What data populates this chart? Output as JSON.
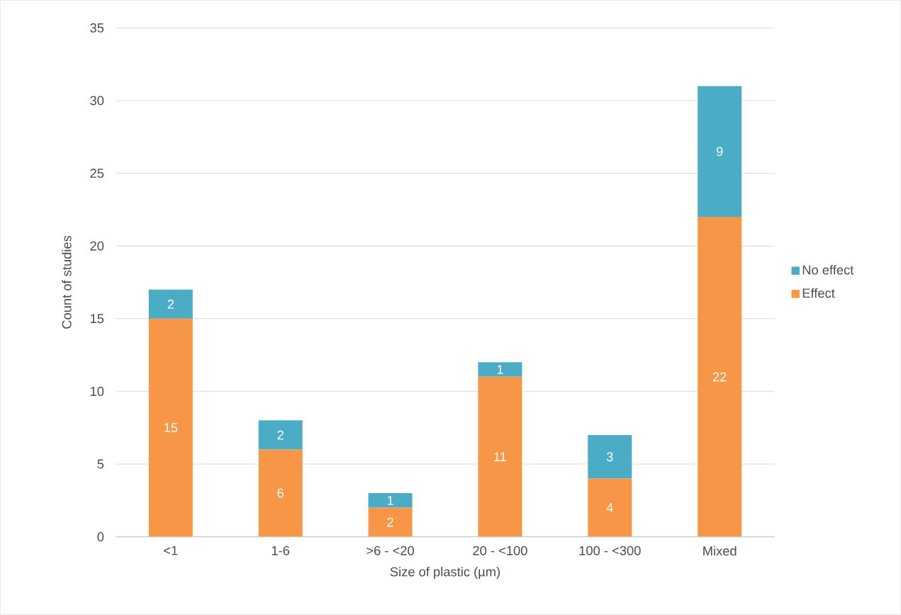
{
  "chart_data": {
    "type": "bar",
    "stacked": true,
    "xlabel": "Size of plastic (µm)",
    "ylabel": "Count of studies",
    "categories": [
      "<1",
      "1-6",
      ">6 - <20",
      "20 - <100",
      "100 - <300",
      "Mixed"
    ],
    "series": [
      {
        "name": "Effect",
        "color": "#f79646",
        "values": [
          15,
          6,
          2,
          11,
          4,
          22
        ]
      },
      {
        "name": "No effect",
        "color": "#4bacc6",
        "values": [
          2,
          2,
          1,
          1,
          3,
          9
        ]
      }
    ],
    "ylim": [
      0,
      35
    ],
    "yticks": [
      0,
      5,
      10,
      15,
      20,
      25,
      30,
      35
    ],
    "grid": "y",
    "legend": "right",
    "data_labels": true
  }
}
